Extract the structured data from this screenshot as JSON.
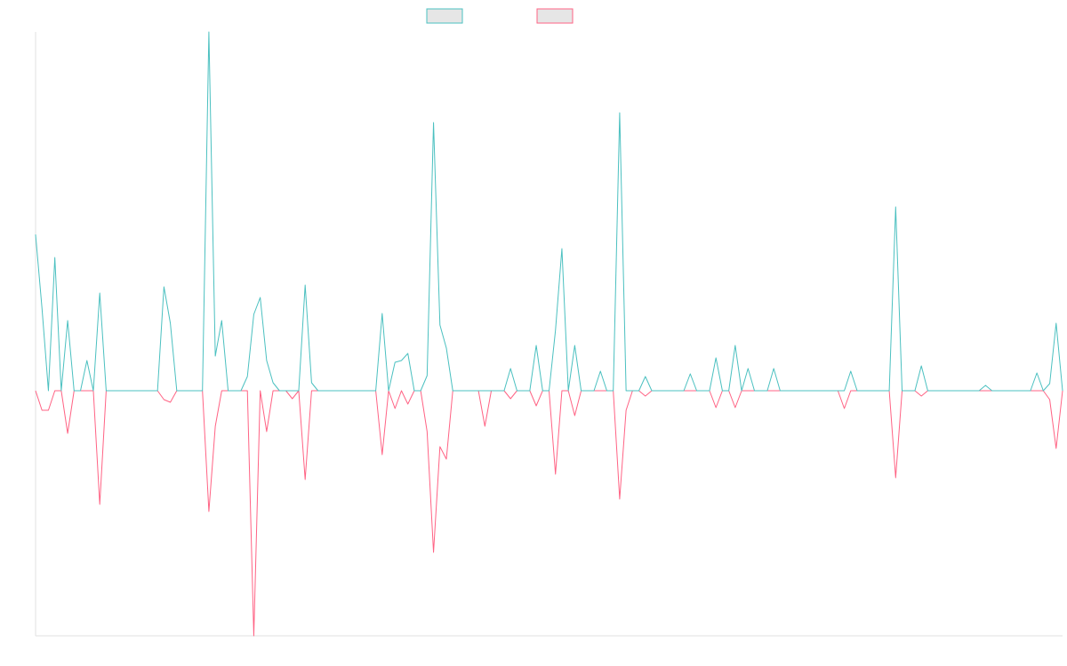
{
  "chart_data": {
    "type": "line",
    "ylim": [
      -276,
      404
    ],
    "series": [
      {
        "color": "#4bc0c0",
        "values": [
          176,
          93,
          0,
          150,
          0,
          79,
          0,
          0,
          34,
          0,
          110,
          0,
          0,
          0,
          0,
          0,
          0,
          0,
          0,
          0,
          117,
          76,
          0,
          0,
          0,
          0,
          0,
          404,
          39,
          79,
          0,
          0,
          0,
          16,
          86,
          105,
          34,
          9,
          0,
          0,
          0,
          0,
          119,
          9,
          0,
          0,
          0,
          0,
          0,
          0,
          0,
          0,
          0,
          0,
          87,
          0,
          32,
          34,
          42,
          0,
          0,
          17,
          302,
          74,
          48,
          0,
          0,
          0,
          0,
          0,
          0,
          0,
          0,
          0,
          25,
          0,
          0,
          0,
          51,
          0,
          0,
          68,
          160,
          0,
          51,
          0,
          0,
          0,
          22,
          0,
          0,
          313,
          0,
          0,
          0,
          16,
          0,
          0,
          0,
          0,
          0,
          0,
          19,
          0,
          0,
          0,
          37,
          0,
          0,
          51,
          0,
          25,
          0,
          0,
          0,
          25,
          0,
          0,
          0,
          0,
          0,
          0,
          0,
          0,
          0,
          0,
          0,
          22,
          0,
          0,
          0,
          0,
          0,
          0,
          207,
          0,
          0,
          0,
          28,
          0,
          0,
          0,
          0,
          0,
          0,
          0,
          0,
          0,
          6,
          0,
          0,
          0,
          0,
          0,
          0,
          0,
          20,
          0,
          8,
          76,
          0
        ]
      },
      {
        "color": "#ff6384",
        "values": [
          0,
          -22,
          -22,
          0,
          0,
          -48,
          0,
          0,
          0,
          0,
          -128,
          0,
          0,
          0,
          0,
          0,
          0,
          0,
          0,
          0,
          -10,
          -13,
          0,
          0,
          0,
          0,
          0,
          -136,
          -40,
          0,
          0,
          0,
          0,
          0,
          -276,
          0,
          -46,
          0,
          0,
          0,
          -9,
          0,
          -100,
          0,
          0,
          0,
          0,
          0,
          0,
          0,
          0,
          0,
          0,
          0,
          -72,
          0,
          -20,
          0,
          -15,
          0,
          0,
          -46,
          -182,
          -63,
          -77,
          0,
          0,
          0,
          0,
          0,
          -40,
          0,
          0,
          0,
          -9,
          0,
          0,
          0,
          -17,
          0,
          0,
          -94,
          0,
          0,
          -28,
          0,
          0,
          0,
          0,
          0,
          0,
          -122,
          -22,
          0,
          0,
          -6,
          0,
          0,
          0,
          0,
          0,
          0,
          0,
          0,
          0,
          0,
          -19,
          0,
          0,
          -19,
          0,
          0,
          0,
          0,
          0,
          0,
          0,
          0,
          0,
          0,
          0,
          0,
          0,
          0,
          0,
          0,
          -20,
          0,
          0,
          0,
          0,
          0,
          0,
          0,
          -98,
          0,
          0,
          0,
          -6,
          0,
          0,
          0,
          0,
          0,
          0,
          0,
          0,
          0,
          0,
          0,
          0,
          0,
          0,
          0,
          0,
          0,
          0,
          0,
          -10,
          -65,
          0
        ]
      }
    ]
  }
}
